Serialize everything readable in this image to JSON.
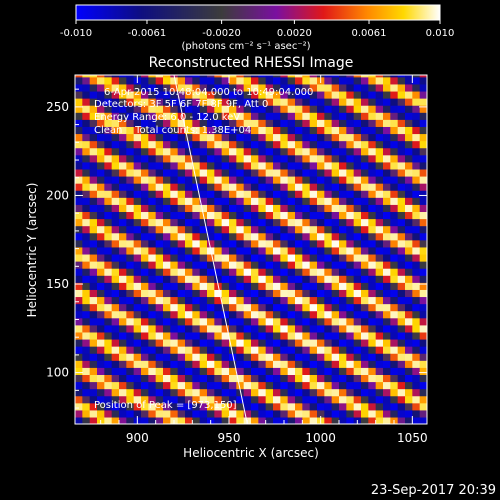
{
  "chart_data": {
    "type": "heatmap",
    "title": "Reconstructed RHESSI Image",
    "xlabel": "Heliocentric X (arcsec)",
    "ylabel": "Heliocentric Y (arcsec)",
    "xlim": [
      866,
      1058
    ],
    "ylim": [
      71,
      268
    ],
    "xticks": [
      900,
      950,
      1000,
      1050
    ],
    "yticks": [
      100,
      150,
      200,
      250
    ],
    "colorbar": {
      "range": [
        -0.01,
        0.01
      ],
      "tick_labels": [
        "-0.010",
        "-0.0061",
        "-0.0020",
        "0.0020",
        "0.0061",
        "0.010"
      ],
      "label": "(photons cm⁻² s⁻¹ asec⁻²)",
      "colors": [
        "#0000ff",
        "#0e0e80",
        "#3c3c3c",
        "#7a0fa0",
        "#e01818",
        "#ff8800",
        "#ffd800",
        "#ffffff"
      ]
    },
    "annotations": {
      "time_range": "6-Apr-2015 10:48:04.000 to 10:49:04.000",
      "detectors": "Detectors: 3F 5F 6F 7F 8F 9F, Att 0",
      "energy_range": "Energy Range: 6.0 - 12.0 keV",
      "clean": "Clean    Total counts: 1.38E+04",
      "peak": "Position of Peak = [973,150]"
    },
    "peak": {
      "x": 973,
      "y": 150
    },
    "fringe": {
      "period_arcsec": 18.5,
      "slope_dy_dx": -0.56
    },
    "limb_line": {
      "x1": 920,
      "y1": 268,
      "x2": 960,
      "y2": 71
    }
  },
  "footer": {
    "date": "23-Sep-2017 20:39"
  }
}
